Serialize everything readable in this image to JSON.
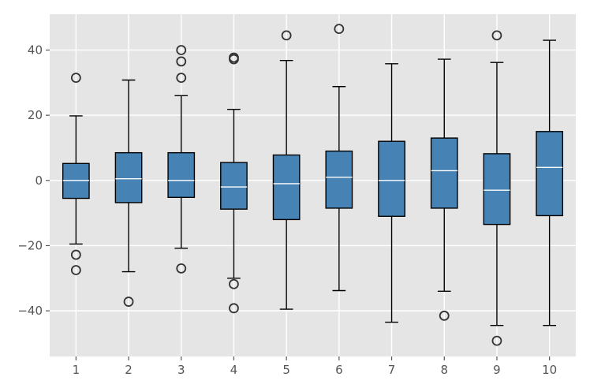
{
  "chart_data": {
    "type": "boxplot",
    "title": "",
    "xlabel": "",
    "ylabel": "",
    "style": "ggplot",
    "grid": true,
    "xlim": [
      0.5,
      10.5
    ],
    "ylim": [
      -54,
      51
    ],
    "yticks": [
      -40,
      -20,
      0,
      20,
      40
    ],
    "ytick_labels": [
      "−40",
      "−20",
      "0",
      "20",
      "40"
    ],
    "categories": [
      "1",
      "2",
      "3",
      "4",
      "5",
      "6",
      "7",
      "8",
      "9",
      "10"
    ],
    "colors": {
      "box_fill": "#4682b4",
      "box_edge": "#000000",
      "median": "#ffffff",
      "plot_background": "#e5e5e5",
      "grid": "#ffffff"
    },
    "boxes": [
      {
        "label": "1",
        "whisker_low": -19.5,
        "q1": -5.5,
        "median": 0.0,
        "q3": 5.2,
        "whisker_high": 19.8,
        "outliers": [
          31.5,
          -22.8,
          -27.5
        ]
      },
      {
        "label": "2",
        "whisker_low": -28.0,
        "q1": -6.8,
        "median": 0.5,
        "q3": 8.5,
        "whisker_high": 30.8,
        "outliers": [
          -37.2
        ]
      },
      {
        "label": "3",
        "whisker_low": -20.8,
        "q1": -5.2,
        "median": 0.0,
        "q3": 8.5,
        "whisker_high": 26.0,
        "outliers": [
          40.0,
          36.5,
          31.5,
          -27.0
        ]
      },
      {
        "label": "4",
        "whisker_low": -30.0,
        "q1": -8.8,
        "median": -2.0,
        "q3": 5.5,
        "whisker_high": 21.8,
        "outliers": [
          37.7,
          37.2,
          -31.8,
          -39.2
        ]
      },
      {
        "label": "5",
        "whisker_low": -39.5,
        "q1": -12.0,
        "median": -1.0,
        "q3": 7.8,
        "whisker_high": 36.8,
        "outliers": [
          44.5
        ]
      },
      {
        "label": "6",
        "whisker_low": -33.8,
        "q1": -8.5,
        "median": 1.0,
        "q3": 9.0,
        "whisker_high": 28.8,
        "outliers": [
          46.5
        ]
      },
      {
        "label": "7",
        "whisker_low": -43.5,
        "q1": -11.0,
        "median": 0.0,
        "q3": 12.0,
        "whisker_high": 35.8,
        "outliers": []
      },
      {
        "label": "8",
        "whisker_low": -34.0,
        "q1": -8.5,
        "median": 3.0,
        "q3": 13.0,
        "whisker_high": 37.2,
        "outliers": [
          -41.5
        ]
      },
      {
        "label": "9",
        "whisker_low": -44.5,
        "q1": -13.5,
        "median": -3.0,
        "q3": 8.2,
        "whisker_high": 36.2,
        "outliers": [
          44.5,
          -49.2
        ]
      },
      {
        "label": "10",
        "whisker_low": -44.5,
        "q1": -10.8,
        "median": 4.0,
        "q3": 15.0,
        "whisker_high": 43.0,
        "outliers": []
      }
    ]
  }
}
